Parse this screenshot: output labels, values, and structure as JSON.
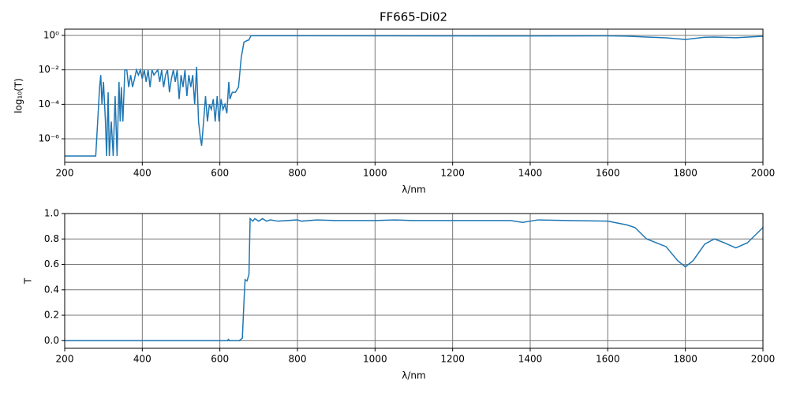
{
  "chart_data": [
    {
      "type": "line",
      "title": "FF665-Di02",
      "x_label": "λ/nm",
      "y_label": "log₁₀(T)",
      "yscale": "log",
      "grid": true,
      "color": "#1f77b4",
      "xlim": [
        200,
        2000
      ],
      "xticks": [
        200,
        400,
        600,
        800,
        1000,
        1200,
        1400,
        1600,
        1800,
        2000
      ],
      "ylim": [
        4.3e-08,
        2.3
      ],
      "yticks": [
        {
          "value": 1e-06,
          "label": "10⁻⁶"
        },
        {
          "value": 0.0001,
          "label": "10⁻⁴"
        },
        {
          "value": 0.01,
          "label": "10⁻²"
        },
        {
          "value": 1,
          "label": "10⁰"
        }
      ],
      "x": [
        200,
        280,
        285,
        290,
        293,
        296,
        300,
        305,
        308,
        312,
        315,
        320,
        325,
        330,
        335,
        340,
        343,
        346,
        350,
        355,
        360,
        365,
        370,
        375,
        380,
        385,
        390,
        395,
        400,
        405,
        410,
        415,
        420,
        425,
        430,
        440,
        445,
        450,
        455,
        460,
        465,
        470,
        475,
        480,
        485,
        490,
        495,
        500,
        505,
        510,
        515,
        520,
        525,
        530,
        535,
        540,
        545,
        550,
        553,
        558,
        563,
        568,
        573,
        578,
        583,
        588,
        593,
        598,
        603,
        608,
        613,
        618,
        623,
        626,
        632,
        640,
        648,
        655,
        662,
        670,
        675,
        680,
        800,
        1400,
        1600,
        1650,
        1700,
        1750,
        1800,
        1850,
        1875,
        1930,
        2000
      ],
      "values": [
        1e-07,
        1e-07,
        1e-05,
        0.001,
        0.005,
        0.0001,
        0.002,
        1e-05,
        1e-07,
        0.0005,
        1e-07,
        1e-05,
        1e-07,
        0.0003,
        1e-07,
        0.002,
        1e-05,
        0.001,
        1e-05,
        0.01,
        0.01,
        0.001,
        0.005,
        0.001,
        0.003,
        0.01,
        0.005,
        0.01,
        0.003,
        0.01,
        0.002,
        0.01,
        0.001,
        0.01,
        0.005,
        0.01,
        0.002,
        0.01,
        0.001,
        0.005,
        0.01,
        0.0005,
        0.003,
        0.01,
        0.002,
        0.01,
        0.0002,
        0.005,
        0.001,
        0.01,
        0.0003,
        0.005,
        0.001,
        0.005,
        0.0001,
        0.015,
        1e-05,
        1e-06,
        4e-07,
        1e-05,
        0.0003,
        1e-05,
        0.0001,
        5e-05,
        0.0002,
        1e-05,
        0.0003,
        1e-05,
        0.0002,
        5e-05,
        0.0001,
        3e-05,
        0.002,
        0.0002,
        0.0005,
        0.0005,
        0.001,
        0.05,
        0.4,
        0.5,
        0.55,
        0.95,
        0.95,
        0.93,
        0.94,
        0.9,
        0.8,
        0.72,
        0.58,
        0.78,
        0.8,
        0.73,
        0.89
      ]
    },
    {
      "type": "line",
      "x_label": "λ/nm",
      "y_label": "T",
      "grid": true,
      "color": "#1f77b4",
      "xlim": [
        200,
        2000
      ],
      "xticks": [
        200,
        400,
        600,
        800,
        1000,
        1200,
        1400,
        1600,
        1800,
        2000
      ],
      "ylim": [
        -0.06,
        1.0
      ],
      "yticks": [
        {
          "value": 0,
          "label": "0.0"
        },
        0.2,
        0.4,
        0.6,
        0.8,
        {
          "value": 1,
          "label": "1.0"
        }
      ],
      "x": [
        200,
        620,
        622,
        625,
        650,
        658,
        662,
        665,
        670,
        675,
        678,
        685,
        690,
        700,
        710,
        720,
        730,
        750,
        800,
        810,
        850,
        900,
        1000,
        1050,
        1100,
        1200,
        1350,
        1380,
        1420,
        1500,
        1600,
        1650,
        1670,
        1700,
        1750,
        1780,
        1800,
        1820,
        1850,
        1875,
        1900,
        1930,
        1960,
        2000
      ],
      "values": [
        0,
        0,
        0.01,
        0,
        0,
        0.02,
        0.3,
        0.48,
        0.47,
        0.52,
        0.96,
        0.94,
        0.96,
        0.94,
        0.96,
        0.94,
        0.95,
        0.94,
        0.95,
        0.94,
        0.95,
        0.945,
        0.945,
        0.95,
        0.945,
        0.945,
        0.945,
        0.93,
        0.95,
        0.945,
        0.94,
        0.91,
        0.89,
        0.8,
        0.74,
        0.63,
        0.58,
        0.63,
        0.76,
        0.8,
        0.77,
        0.73,
        0.77,
        0.89
      ]
    }
  ]
}
